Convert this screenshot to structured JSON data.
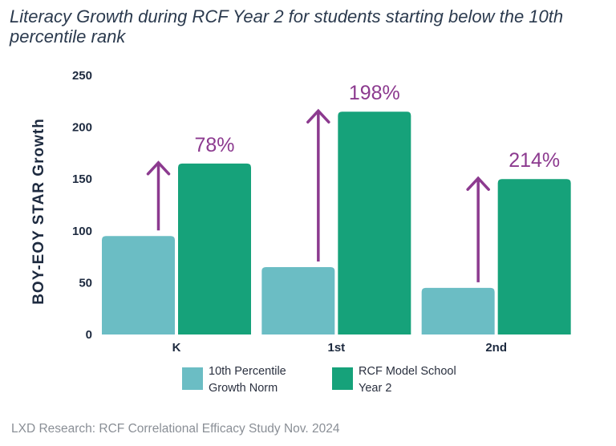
{
  "chart_data": {
    "type": "bar",
    "title": "Literacy Growth during RCF Year 2 for students starting below the 10th percentile rank",
    "ylabel": "BOY-EOY STAR Growth",
    "xlabel": "",
    "ylim": [
      0,
      250
    ],
    "yticks": [
      0,
      50,
      100,
      150,
      200,
      250
    ],
    "categories": [
      "K",
      "1st",
      "2nd"
    ],
    "series": [
      {
        "name": "10th Percentile Growth Norm",
        "legend_lines": [
          "10th Percentile",
          "Growth Norm"
        ],
        "color": "#6bbdc4",
        "values": [
          95,
          65,
          45
        ]
      },
      {
        "name": "RCF Model School Year 2",
        "legend_lines": [
          "RCF Model School",
          "Year 2"
        ],
        "color": "#16a27a",
        "values": [
          165,
          215,
          150
        ]
      }
    ],
    "annotations": [
      {
        "category": "K",
        "text": "78%"
      },
      {
        "category": "1st",
        "text": "198%"
      },
      {
        "category": "2nd",
        "text": "214%"
      }
    ],
    "annotation_color": "#8c3a8f",
    "grid": false,
    "legend_position": "bottom"
  },
  "source": "LXD Research: RCF Correlational Efficacy Study Nov. 2024"
}
